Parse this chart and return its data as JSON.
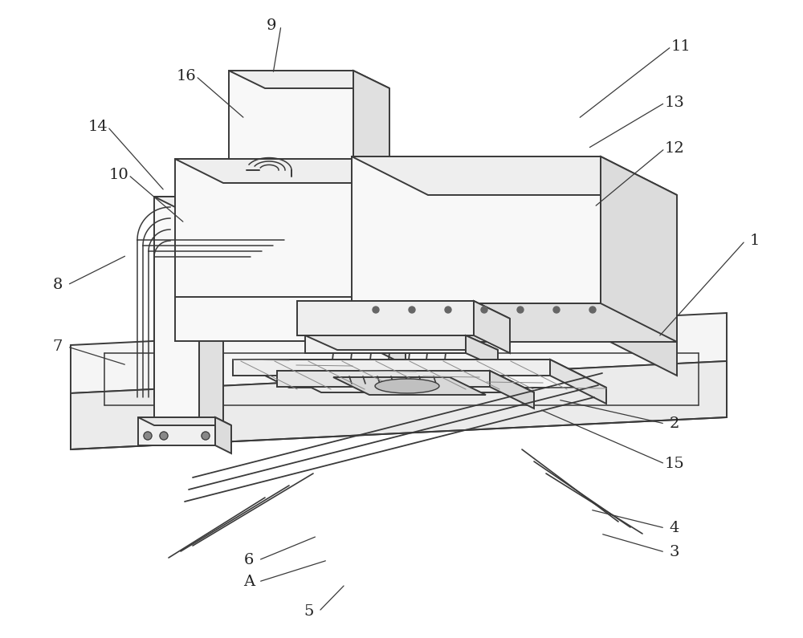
{
  "background_color": "#ffffff",
  "line_color": "#3a3a3a",
  "line_width": 1.4,
  "label_fontsize": 14,
  "figsize": [
    10.0,
    7.95
  ],
  "dpi": 100,
  "annotations": [
    [
      "1",
      940,
      300,
      820,
      420
    ],
    [
      "2",
      840,
      528,
      695,
      498
    ],
    [
      "3",
      840,
      688,
      748,
      665
    ],
    [
      "4",
      840,
      658,
      735,
      635
    ],
    [
      "5",
      385,
      762,
      430,
      728
    ],
    [
      "6",
      310,
      698,
      395,
      668
    ],
    [
      "A",
      310,
      725,
      408,
      698
    ],
    [
      "7",
      72,
      432,
      158,
      455
    ],
    [
      "8",
      72,
      355,
      158,
      318
    ],
    [
      "9",
      338,
      32,
      340,
      92
    ],
    [
      "10",
      148,
      218,
      230,
      278
    ],
    [
      "11",
      848,
      58,
      720,
      148
    ],
    [
      "12",
      840,
      185,
      740,
      258
    ],
    [
      "13",
      840,
      128,
      732,
      185
    ],
    [
      "14",
      122,
      158,
      205,
      238
    ],
    [
      "15",
      840,
      578,
      672,
      510
    ],
    [
      "16",
      232,
      95,
      305,
      148
    ]
  ]
}
